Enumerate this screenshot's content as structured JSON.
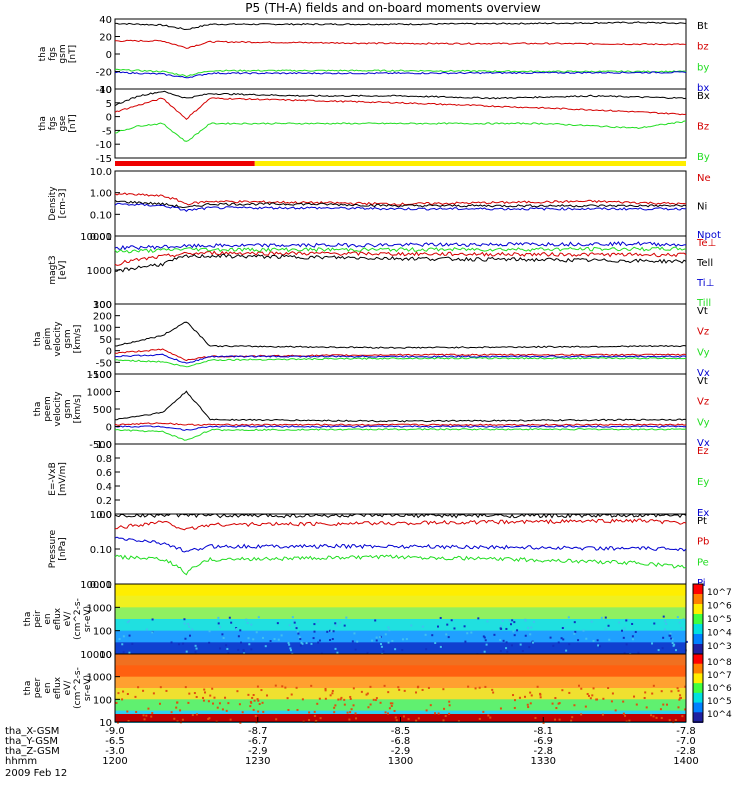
{
  "title": "P5 (TH-A) fields and on-board moments overview",
  "date_label": "2009 Feb 12",
  "colors": {
    "black": "#000000",
    "red": "#d40000",
    "green": "#22dd22",
    "blue": "#0000d0",
    "yellow": "#ffee00",
    "barred": "#ee0000"
  },
  "chart_data": [
    {
      "type": "line",
      "ylabel": [
        "tha",
        "fgs",
        "gsm",
        "[nT]"
      ],
      "ylim": [
        -40,
        40
      ],
      "yticks": [
        "40",
        "20",
        "0",
        "-20",
        "-40"
      ],
      "legend": [
        {
          "name": "Bt",
          "color": "black"
        },
        {
          "name": "bz",
          "color": "red"
        },
        {
          "name": "by",
          "color": "green"
        },
        {
          "name": "bx",
          "color": "blue"
        }
      ],
      "series": [
        {
          "name": "Bt",
          "x": [
            1200,
            1210,
            1215,
            1220,
            1240,
            1300,
            1330,
            1350,
            1400
          ],
          "y": [
            35,
            33,
            28,
            34,
            34,
            34,
            35,
            36,
            35
          ]
        },
        {
          "name": "bz",
          "x": [
            1200,
            1210,
            1215,
            1220,
            1240,
            1300,
            1330,
            1400
          ],
          "y": [
            15,
            15,
            7,
            14,
            13,
            12,
            12,
            11
          ]
        },
        {
          "name": "by",
          "x": [
            1200,
            1210,
            1215,
            1220,
            1300,
            1330,
            1400
          ],
          "y": [
            -18,
            -20,
            -25,
            -19,
            -19,
            -20,
            -20
          ]
        },
        {
          "name": "bx",
          "x": [
            1200,
            1210,
            1215,
            1220,
            1300,
            1400
          ],
          "y": [
            -21,
            -23,
            -27,
            -22,
            -22,
            -21
          ]
        }
      ]
    },
    {
      "type": "line",
      "ylabel": [
        "tha",
        "fgs",
        "gse",
        "[nT]"
      ],
      "ylim": [
        -18,
        12
      ],
      "yticks": [
        "10",
        "5",
        "0",
        "-5",
        "-10",
        "-15"
      ],
      "legend": [
        {
          "name": "Bx",
          "color": "black"
        },
        {
          "name": "Bz",
          "color": "red"
        },
        {
          "name": "By",
          "color": "green"
        }
      ],
      "series": [
        {
          "name": "Bx",
          "x": [
            1200,
            1205,
            1210,
            1215,
            1220,
            1240,
            1300,
            1320,
            1340,
            1400
          ],
          "y": [
            5,
            9,
            11,
            8,
            10,
            9,
            9,
            8,
            9,
            8
          ]
        },
        {
          "name": "Bz",
          "x": [
            1200,
            1205,
            1210,
            1215,
            1220,
            1240,
            1300,
            1340,
            1400
          ],
          "y": [
            2,
            5,
            8,
            -1,
            8,
            7,
            6,
            3,
            1
          ]
        },
        {
          "name": "By",
          "x": [
            1200,
            1205,
            1210,
            1215,
            1220,
            1240,
            1300,
            1330,
            1350,
            1400
          ],
          "y": [
            -7,
            -4,
            -3,
            -11,
            -3,
            -3,
            -3,
            -3,
            -5,
            -2
          ]
        }
      ]
    },
    {
      "type": "line",
      "ylabel": [
        "Density",
        "[cm-3]"
      ],
      "ylim": [
        0.01,
        10
      ],
      "log": true,
      "yticks": [
        "10.0",
        "1.00",
        "0.10",
        "0.01"
      ],
      "legend": [
        {
          "name": "Ne",
          "color": "red"
        },
        {
          "name": "Ni",
          "color": "black"
        },
        {
          "name": "Npot",
          "color": "blue"
        }
      ],
      "series": [
        {
          "name": "Ne",
          "x": [
            1200,
            1210,
            1215,
            1220,
            1240,
            1300,
            1340,
            1400
          ],
          "y": [
            0.9,
            0.7,
            0.3,
            0.4,
            0.35,
            0.3,
            0.4,
            0.3
          ]
        },
        {
          "name": "Ni",
          "x": [
            1200,
            1210,
            1215,
            1220,
            1240,
            1300,
            1400
          ],
          "y": [
            0.4,
            0.3,
            0.2,
            0.3,
            0.3,
            0.25,
            0.25
          ]
        },
        {
          "name": "Npot",
          "x": [
            1200,
            1210,
            1215,
            1220,
            1240,
            1300,
            1400
          ],
          "y": [
            0.3,
            0.25,
            0.15,
            0.2,
            0.2,
            0.18,
            0.18
          ]
        }
      ]
    },
    {
      "type": "line",
      "ylabel": [
        "magt3",
        "[eV]"
      ],
      "ylim": [
        100,
        10000
      ],
      "log": true,
      "yticks": [
        "10000",
        "1000",
        "100"
      ],
      "legend": [
        {
          "name": "Te⊥",
          "color": "red"
        },
        {
          "name": "Tell",
          "color": "black"
        },
        {
          "name": "Ti⊥",
          "color": "blue"
        },
        {
          "name": "Till",
          "color": "green"
        }
      ],
      "series": [
        {
          "name": "Te⊥",
          "x": [
            1200,
            1210,
            1215,
            1220,
            1300,
            1400
          ],
          "y": [
            1500,
            2500,
            3000,
            3200,
            3000,
            2800
          ]
        },
        {
          "name": "Tell",
          "x": [
            1200,
            1210,
            1215,
            1220,
            1300,
            1400
          ],
          "y": [
            900,
            1500,
            2500,
            2600,
            2200,
            1800
          ]
        },
        {
          "name": "Ti⊥",
          "x": [
            1200,
            1210,
            1215,
            1220,
            1300,
            1350,
            1400
          ],
          "y": [
            4500,
            4800,
            5000,
            5200,
            5500,
            6000,
            5500
          ]
        },
        {
          "name": "Till",
          "x": [
            1200,
            1210,
            1215,
            1220,
            1300,
            1400
          ],
          "y": [
            3500,
            3800,
            4200,
            4000,
            4000,
            4200
          ]
        }
      ]
    },
    {
      "type": "line",
      "ylabel": [
        "tha",
        "peim",
        "velocity",
        "gsm",
        "[km/s]"
      ],
      "ylim": [
        -100,
        300
      ],
      "yticks": [
        "300",
        "200",
        "100",
        "50",
        "0",
        "-50",
        "-100"
      ],
      "legend": [
        {
          "name": "Vt",
          "color": "black"
        },
        {
          "name": "Vz",
          "color": "red"
        },
        {
          "name": "Vy",
          "color": "green"
        },
        {
          "name": "Vx",
          "color": "blue"
        }
      ],
      "series": [
        {
          "name": "Vt",
          "x": [
            1200,
            1210,
            1215,
            1220,
            1300,
            1400
          ],
          "y": [
            60,
            120,
            200,
            60,
            50,
            60
          ]
        },
        {
          "name": "Vz",
          "x": [
            1200,
            1210,
            1215,
            1220,
            1300,
            1400
          ],
          "y": [
            20,
            40,
            -20,
            0,
            10,
            10
          ]
        },
        {
          "name": "Vy",
          "x": [
            1200,
            1210,
            1215,
            1220,
            1300,
            1400
          ],
          "y": [
            -20,
            -30,
            -60,
            -20,
            -10,
            -10
          ]
        },
        {
          "name": "Vx",
          "x": [
            1200,
            1210,
            1215,
            1220,
            1300,
            1400
          ],
          "y": [
            0,
            10,
            -40,
            0,
            0,
            0
          ]
        }
      ]
    },
    {
      "type": "line",
      "ylabel": [
        "tha",
        "peem",
        "velocity",
        "gsm",
        "[km/s]"
      ],
      "ylim": [
        -500,
        1500
      ],
      "yticks": [
        "1500",
        "1000",
        "500",
        "0",
        "-500"
      ],
      "legend": [
        {
          "name": "Vt",
          "color": "black"
        },
        {
          "name": "Vz",
          "color": "red"
        },
        {
          "name": "Vy",
          "color": "green"
        },
        {
          "name": "Vx",
          "color": "blue"
        }
      ],
      "series": [
        {
          "name": "Vt",
          "x": [
            1200,
            1210,
            1215,
            1220,
            1300,
            1400
          ],
          "y": [
            200,
            400,
            1000,
            200,
            150,
            200
          ]
        },
        {
          "name": "Vz",
          "x": [
            1200,
            1210,
            1215,
            1220,
            1300,
            1400
          ],
          "y": [
            50,
            100,
            50,
            50,
            50,
            50
          ]
        },
        {
          "name": "Vy",
          "x": [
            1200,
            1210,
            1215,
            1220,
            1300,
            1400
          ],
          "y": [
            -100,
            -150,
            -400,
            -100,
            -80,
            -80
          ]
        },
        {
          "name": "Vx",
          "x": [
            1200,
            1210,
            1215,
            1220,
            1300,
            1400
          ],
          "y": [
            0,
            0,
            -100,
            0,
            0,
            0
          ]
        }
      ]
    },
    {
      "type": "line",
      "ylabel": [
        "E=-VxB",
        "[mV/m]"
      ],
      "ylim": [
        0,
        1
      ],
      "yticks": [
        "1.0",
        "0.8",
        "0.6",
        "0.4",
        "0.2",
        "0.0"
      ],
      "legend": [
        {
          "name": "Ez",
          "color": "red"
        },
        {
          "name": "Ey",
          "color": "green"
        },
        {
          "name": "Ex",
          "color": "blue"
        }
      ],
      "series": []
    },
    {
      "type": "line",
      "ylabel": [
        "Pressure",
        "[nPa]"
      ],
      "ylim": [
        0.01,
        1
      ],
      "log": true,
      "yticks": [
        "1.00",
        "0.10",
        "0.01"
      ],
      "legend": [
        {
          "name": "Pt",
          "color": "black"
        },
        {
          "name": "Pb",
          "color": "red"
        },
        {
          "name": "Pe",
          "color": "green"
        },
        {
          "name": "Pi",
          "color": "blue"
        }
      ],
      "series": [
        {
          "name": "Pt",
          "x": [
            1200,
            1215,
            1220,
            1400
          ],
          "y": [
            0.9,
            0.95,
            0.9,
            0.9
          ]
        },
        {
          "name": "Pb",
          "x": [
            1200,
            1210,
            1215,
            1220,
            1300,
            1350,
            1400
          ],
          "y": [
            0.4,
            0.6,
            0.35,
            0.5,
            0.55,
            0.65,
            0.55
          ]
        },
        {
          "name": "Pe",
          "x": [
            1200,
            1210,
            1215,
            1220,
            1300,
            1350,
            1400
          ],
          "y": [
            0.06,
            0.05,
            0.02,
            0.05,
            0.06,
            0.04,
            0.03
          ]
        },
        {
          "name": "Pi",
          "x": [
            1200,
            1210,
            1215,
            1220,
            1300,
            1400
          ],
          "y": [
            0.2,
            0.15,
            0.08,
            0.12,
            0.12,
            0.1
          ]
        }
      ]
    },
    {
      "type": "heatmap",
      "ylabel": [
        "tha",
        "peir",
        "en",
        "eflux",
        "eV/",
        "(cm^2-s-",
        "sr-eV)"
      ],
      "yticks": [
        "10000",
        "1000",
        "100",
        "10"
      ],
      "colorbar": [
        "10^7",
        "10^6",
        "10^5",
        "10^4",
        "10^3"
      ]
    },
    {
      "type": "heatmap",
      "ylabel": [
        "tha",
        "peer",
        "en",
        "eflux",
        "eV/",
        "(cm^2-s-",
        "sr-eV)"
      ],
      "yticks": [
        "10000",
        "1000",
        "100",
        "10"
      ],
      "colorbar": [
        "10^8",
        "10^7",
        "10^6",
        "10^5",
        "10^4"
      ]
    }
  ],
  "xaxis": {
    "rows": [
      {
        "label": "tha_X-GSM",
        "values": [
          "-9.0",
          "-8.7",
          "-8.5",
          "-8.1",
          "-7.8"
        ]
      },
      {
        "label": "tha_Y-GSM",
        "values": [
          "-6.5",
          "-6.7",
          "-6.8",
          "-6.9",
          "-7.0"
        ]
      },
      {
        "label": "tha_Z-GSM",
        "values": [
          "-3.0",
          "-2.9",
          "-2.9",
          "-2.8",
          "-2.8"
        ]
      },
      {
        "label": "hhmm",
        "values": [
          "1200",
          "1230",
          "1300",
          "1330",
          "1400"
        ]
      }
    ]
  }
}
